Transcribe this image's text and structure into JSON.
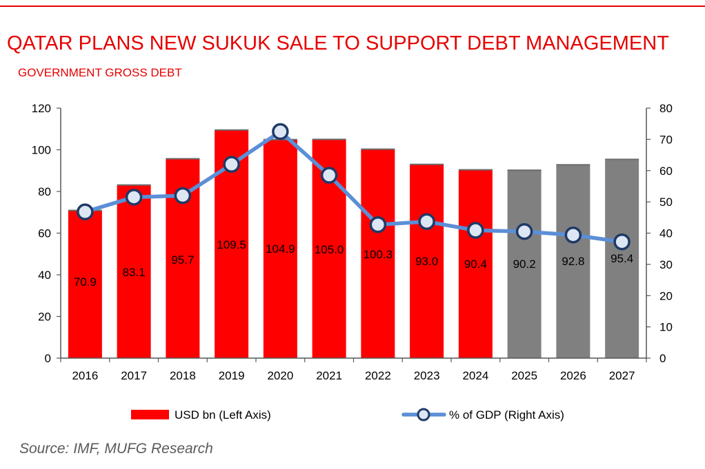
{
  "header": {
    "title": "QATAR PLANS NEW SUKUK SALE TO SUPPORT DEBT MANAGEMENT",
    "subtitle": "GOVERNMENT GROSS DEBT"
  },
  "footer": {
    "source": "Source: IMF, MUFG Research"
  },
  "colors": {
    "accent": "#e60000",
    "bar_actual": "#ff0000",
    "bar_forecast": "#808080",
    "line": "#5b8fd6",
    "marker_border": "#1f3a66",
    "marker_fill": "#dde6f3"
  },
  "chart_data": {
    "type": "bar",
    "categories": [
      "2016",
      "2017",
      "2018",
      "2019",
      "2020",
      "2021",
      "2022",
      "2023",
      "2024",
      "2025",
      "2026",
      "2027"
    ],
    "series": [
      {
        "name": "USD bn (Left Axis)",
        "axis": "left",
        "type": "bar",
        "values": [
          70.9,
          83.1,
          95.7,
          109.5,
          104.9,
          105.0,
          100.3,
          93.0,
          90.4,
          90.2,
          92.8,
          95.4
        ],
        "value_labels": [
          "70.9",
          "83.1",
          "95.7",
          "109.5",
          "104.9",
          "105.0",
          "100.3",
          "93.0",
          "90.4",
          "90.2",
          "92.8",
          "95.4"
        ],
        "forecast_from": "2025"
      },
      {
        "name": "%  of GDP (Right Axis)",
        "axis": "right",
        "type": "line",
        "values": [
          46.8,
          51.5,
          52.0,
          62.0,
          72.5,
          58.5,
          42.7,
          43.7,
          40.9,
          40.5,
          39.4,
          37.2
        ]
      }
    ],
    "left_axis": {
      "ylim": [
        0,
        120
      ],
      "ticks": [
        "0",
        "20",
        "40",
        "60",
        "80",
        "100",
        "120"
      ]
    },
    "right_axis": {
      "ylim": [
        0,
        80
      ],
      "ticks": [
        "0",
        "10",
        "20",
        "30",
        "40",
        "50",
        "60",
        "70",
        "80"
      ]
    },
    "grid": false,
    "legend_position": "bottom"
  }
}
